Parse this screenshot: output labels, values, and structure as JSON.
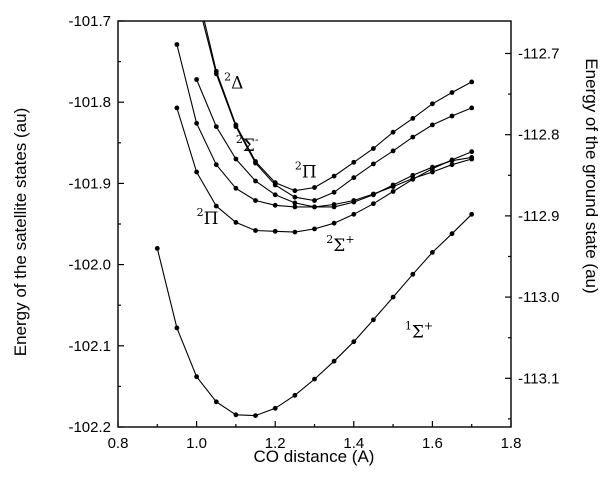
{
  "chart_data": {
    "type": "line",
    "xlabel": "CO distance (A)",
    "ylabel_left": "Energy of the satellite states (au)",
    "ylabel_right": "Energy of the ground state (au)",
    "xlim": [
      0.8,
      1.8
    ],
    "ylim_left": [
      -102.2,
      -101.7
    ],
    "ylim_right": [
      -113.16,
      -112.66
    ],
    "x_ticks": [
      "0.8",
      "1.0",
      "1.2",
      "1.4",
      "1.6",
      "1.8"
    ],
    "y_left_ticks": [
      "-101.7",
      "-101.8",
      "-101.9",
      "-102.0",
      "-102.1",
      "-102.2"
    ],
    "y_right_ticks": [
      "-112.7",
      "-112.8",
      "-112.9",
      "-113.0",
      "-113.1"
    ],
    "grid": false,
    "series": [
      {
        "axis": "right",
        "x": [
          0.9,
          0.95,
          1.0,
          1.05,
          1.1,
          1.15,
          1.2,
          1.25,
          1.3,
          1.35,
          1.4,
          1.45,
          1.5,
          1.55,
          1.6,
          1.65,
          1.7
        ],
        "y": [
          -112.94,
          -113.038,
          -113.098,
          -113.129,
          -113.145,
          -113.146,
          -113.137,
          -113.121,
          -113.101,
          -113.079,
          -113.055,
          -113.028,
          -113.0,
          -112.972,
          -112.945,
          -112.922,
          -112.898
        ]
      },
      {
        "axis": "left",
        "x": [
          0.95,
          1.0,
          1.05,
          1.1,
          1.15,
          1.2,
          1.25,
          1.3,
          1.35,
          1.4,
          1.45,
          1.5,
          1.55,
          1.6,
          1.65,
          1.7
        ],
        "y": [
          -101.807,
          -101.886,
          -101.928,
          -101.948,
          -101.958,
          -101.959,
          -101.96,
          -101.956,
          -101.949,
          -101.938,
          -101.925,
          -101.91,
          -101.895,
          -101.882,
          -101.871,
          -101.861
        ]
      },
      {
        "axis": "left",
        "x": [
          0.95,
          1.0,
          1.05,
          1.1,
          1.15,
          1.2,
          1.25,
          1.3,
          1.35,
          1.4,
          1.45,
          1.5,
          1.55,
          1.6,
          1.65,
          1.7
        ],
        "y": [
          -101.729,
          -101.826,
          -101.877,
          -101.906,
          -101.921,
          -101.927,
          -101.929,
          -101.929,
          -101.926,
          -101.921,
          -101.913,
          -101.904,
          -101.894,
          -101.886,
          -101.877,
          -101.87
        ]
      },
      {
        "axis": "left",
        "x": [
          1.0,
          1.05,
          1.1,
          1.15,
          1.2,
          1.25,
          1.3,
          1.35,
          1.4,
          1.45,
          1.5,
          1.55,
          1.6,
          1.65,
          1.7
        ],
        "y": [
          -101.772,
          -101.83,
          -101.87,
          -101.897,
          -101.914,
          -101.924,
          -101.929,
          -101.929,
          -101.923,
          -101.914,
          -101.902,
          -101.89,
          -101.88,
          -101.872,
          -101.868
        ]
      },
      {
        "axis": "left",
        "x": [
          1.0,
          1.05,
          1.1,
          1.15,
          1.2,
          1.25,
          1.3,
          1.35,
          1.4,
          1.45,
          1.5,
          1.55,
          1.6,
          1.65,
          1.7
        ],
        "y": [
          -101.67,
          -101.765,
          -101.83,
          -101.875,
          -101.902,
          -101.917,
          -101.921,
          -101.911,
          -101.893,
          -101.876,
          -101.86,
          -101.843,
          -101.828,
          -101.817,
          -101.807
        ]
      },
      {
        "axis": "left",
        "x": [
          1.0,
          1.05,
          1.1,
          1.15,
          1.2,
          1.25,
          1.3,
          1.35,
          1.4,
          1.45,
          1.5,
          1.55,
          1.6,
          1.65,
          1.7
        ],
        "y": [
          -101.66,
          -101.762,
          -101.828,
          -101.873,
          -101.899,
          -101.909,
          -101.905,
          -101.891,
          -101.874,
          -101.857,
          -101.837,
          -101.82,
          -101.802,
          -101.788,
          -101.775
        ]
      }
    ],
    "annotations": [
      {
        "base": "2",
        "sym": "Δ",
        "sup2": "",
        "x": 1.07,
        "y": -101.783
      },
      {
        "base": "2",
        "sym": "Σ",
        "sup2": "-",
        "x": 1.1,
        "y": -101.86
      },
      {
        "base": "2",
        "sym": "Π",
        "sup2": "",
        "x": 1.25,
        "y": -101.893
      },
      {
        "base": "2",
        "sym": "Π",
        "sup2": "",
        "x": 1.0,
        "y": -101.95
      },
      {
        "base": "2",
        "sym": "Σ",
        "sup2": "+",
        "x": 1.33,
        "y": -101.983
      },
      {
        "base": "1",
        "sym": "Σ",
        "sup2": "+",
        "x": 1.53,
        "y": -102.09
      }
    ]
  }
}
